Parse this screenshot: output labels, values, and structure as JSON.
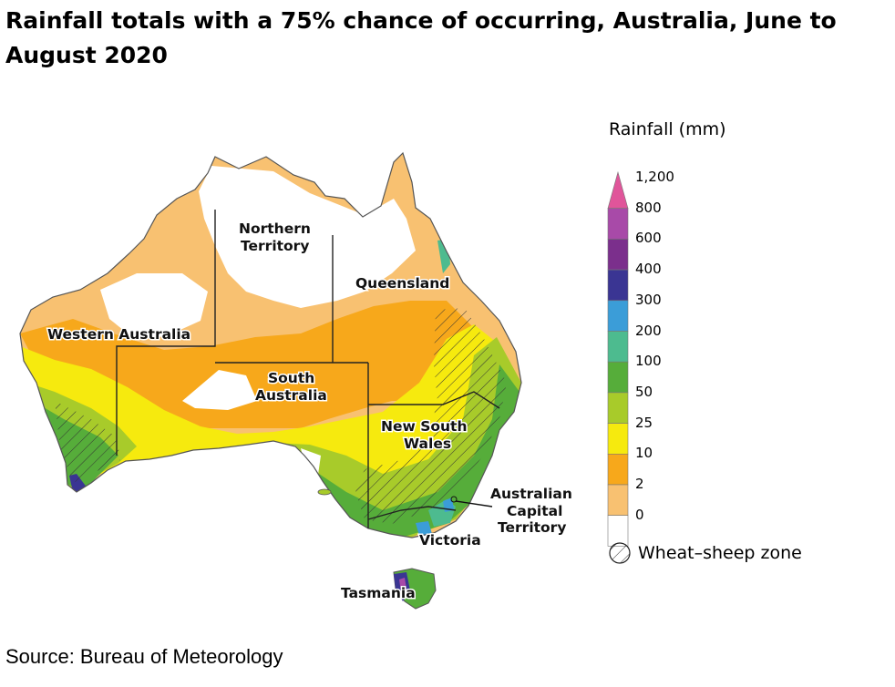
{
  "title": "Rainfall totals with a 75% chance of occurring, Australia, June to August 2020",
  "source": "Source: Bureau of Meteorology",
  "regions": {
    "nt_line1": "Northern",
    "nt_line2": "Territory",
    "queensland": "Queensland",
    "wa": "Western Australia",
    "sa_line1": "South",
    "sa_line2": "Australia",
    "nsw_line1": "New South",
    "nsw_line2": "Wales",
    "act_line1": "Australian",
    "act_line2": "Capital",
    "act_line3": "Territory",
    "victoria": "Victoria",
    "tasmania": "Tasmania"
  },
  "legend": {
    "title": "Rainfall (mm)",
    "ticks": [
      "1,200",
      "800",
      "600",
      "400",
      "300",
      "200",
      "100",
      "50",
      "25",
      "10",
      "2",
      "0"
    ],
    "bins": [
      {
        "color": "#e0559a"
      },
      {
        "color": "#a84aa8"
      },
      {
        "color": "#7b2f8c"
      },
      {
        "color": "#3a3593"
      },
      {
        "color": "#3b9dd8"
      },
      {
        "color": "#4dbb8f"
      },
      {
        "color": "#56ad3a"
      },
      {
        "color": "#a8cb2a"
      },
      {
        "color": "#f6ea0e"
      },
      {
        "color": "#f7a81b"
      },
      {
        "color": "#f8c171"
      },
      {
        "color": "#ffffff"
      }
    ],
    "wheat_sheep": "Wheat–sheep zone"
  }
}
